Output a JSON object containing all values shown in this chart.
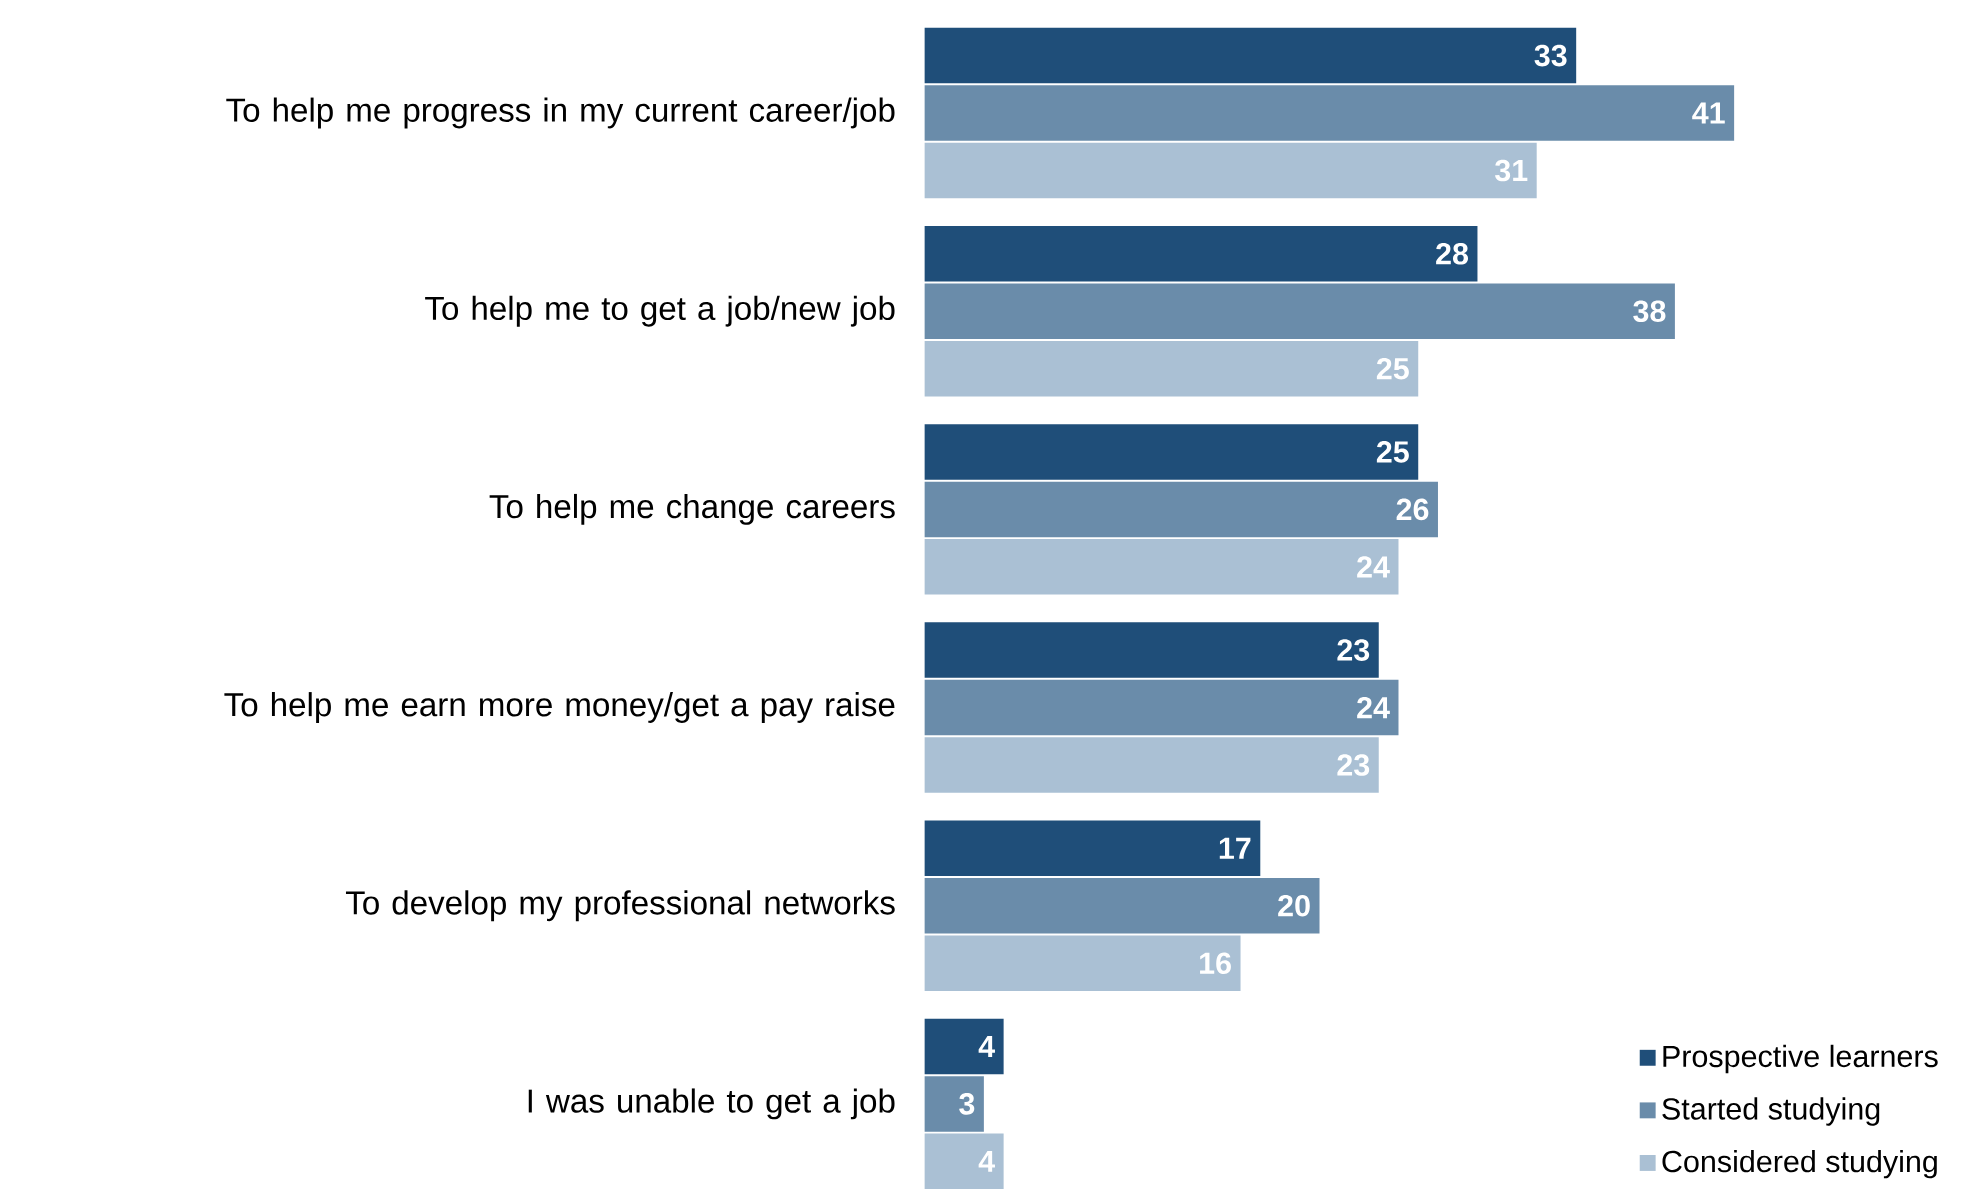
{
  "chart_data": {
    "type": "bar",
    "orientation": "horizontal",
    "categories": [
      "To help me progress in my current career/job",
      "To help me to get a job/new job",
      "To help me change careers",
      "To help me earn more money/get a pay raise",
      "To develop my professional networks",
      "I was unable to get a job"
    ],
    "series": [
      {
        "name": "Prospective learners",
        "color": "#1f4e79",
        "values": [
          33,
          28,
          25,
          23,
          17,
          4
        ]
      },
      {
        "name": "Started studying",
        "color": "#6a8caa",
        "values": [
          41,
          38,
          26,
          24,
          20,
          3
        ]
      },
      {
        "name": "Considered studying",
        "color": "#aac0d4",
        "values": [
          31,
          25,
          24,
          23,
          16,
          4
        ]
      }
    ],
    "data_labels": true,
    "legend": "bottom right"
  }
}
